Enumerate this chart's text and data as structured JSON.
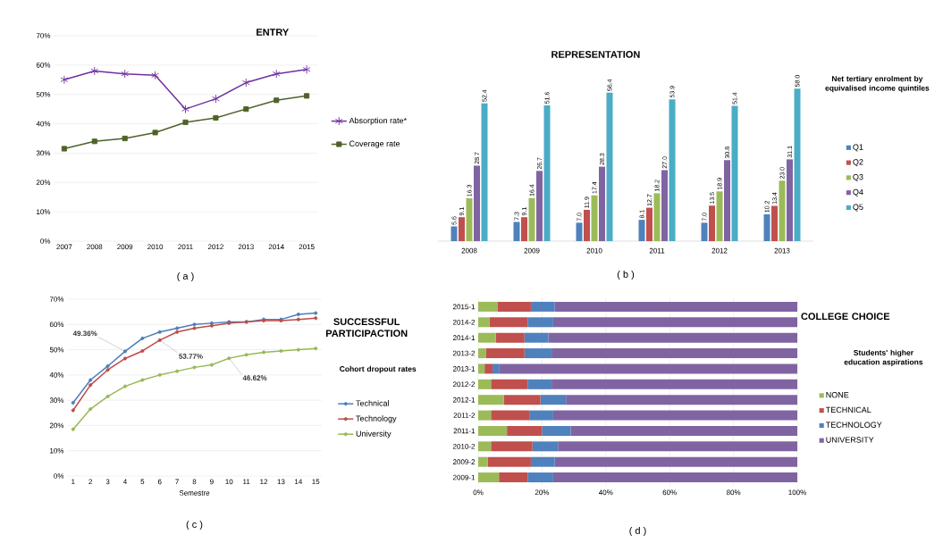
{
  "chart_data": [
    {
      "type": "line",
      "title": "ENTRY",
      "categories": [
        "2007",
        "2008",
        "2009",
        "2010",
        "2011",
        "2012",
        "2013",
        "2014",
        "2015"
      ],
      "series": [
        {
          "name": "Absorption rate*",
          "color": "#7030a0",
          "marker": "cross",
          "values": [
            55,
            58,
            57,
            56.5,
            45,
            48.5,
            54,
            57,
            58.5
          ]
        },
        {
          "name": "Coverage rate",
          "color": "#4f6228",
          "marker": "square",
          "values": [
            31.5,
            34,
            35,
            37,
            40.5,
            42,
            45,
            48,
            49.5
          ]
        }
      ],
      "ylim": [
        0,
        70
      ],
      "yticks": [
        {
          "value": 0,
          "label": "0%"
        },
        {
          "value": 10,
          "label": "10%"
        },
        {
          "value": 20,
          "label": "20%"
        },
        {
          "value": 30,
          "label": "30%"
        },
        {
          "value": 40,
          "label": "40%"
        },
        {
          "value": 50,
          "label": "50%"
        },
        {
          "value": 60,
          "label": "60%"
        },
        {
          "value": 70,
          "label": "70%"
        }
      ],
      "grid": "y",
      "legend": "right",
      "annotations": [
        "( a )"
      ]
    },
    {
      "type": "bar",
      "title": "REPRESENTATION",
      "legend_title": "Net tertiary enrolment by equivalised income quintiles",
      "categories": [
        "2008",
        "2009",
        "2010",
        "2011",
        "2012",
        "2013"
      ],
      "series": [
        {
          "name": "Q1",
          "color": "#4f81bd",
          "values": [
            5.6,
            7.3,
            7.0,
            8.1,
            7.0,
            10.2
          ],
          "value_labels": [
            "5.6",
            "7.3",
            "7.0",
            "8.1",
            "7.0",
            "10.2"
          ]
        },
        {
          "name": "Q2",
          "color": "#c0504d",
          "values": [
            9.1,
            9.1,
            11.9,
            12.7,
            13.5,
            13.4
          ],
          "value_labels": [
            "9.1",
            "9.1",
            "11.9",
            "12.7",
            "13.5",
            "13.4"
          ]
        },
        {
          "name": "Q3",
          "color": "#9bbb59",
          "values": [
            16.3,
            16.4,
            17.4,
            18.2,
            18.9,
            23.0
          ],
          "value_labels": [
            "16.3",
            "16.4",
            "17.4",
            "18.2",
            "18.9",
            "23.0"
          ]
        },
        {
          "name": "Q4",
          "color": "#8064a2",
          "values": [
            28.7,
            26.7,
            28.3,
            27.0,
            30.8,
            31.1
          ],
          "value_labels": [
            "28.7",
            "26.7",
            "28.3",
            "27.0",
            "30.8",
            "31.1"
          ]
        },
        {
          "name": "Q5",
          "color": "#4bacc6",
          "values": [
            52.4,
            51.6,
            56.4,
            53.9,
            51.4,
            58.0
          ],
          "value_labels": [
            "52.4",
            "51.6",
            "56.4",
            "53.9",
            "51.4",
            "58.0"
          ]
        }
      ],
      "legend": "right",
      "annotations": [
        "( b )"
      ]
    },
    {
      "type": "line",
      "title": "SUCCESSFUL PARTICIPACTION",
      "legend_title": "Cohort dropout rates",
      "xlabel": "Semestre",
      "categories": [
        "1",
        "2",
        "3",
        "4",
        "5",
        "6",
        "7",
        "8",
        "9",
        "10",
        "11",
        "12",
        "13",
        "14",
        "15"
      ],
      "series": [
        {
          "name": "Technical",
          "color": "#4a7ebb",
          "values": [
            29,
            38,
            43.5,
            49.36,
            54.5,
            57,
            58.5,
            60,
            60.5,
            61,
            61,
            62,
            62,
            64,
            64.5
          ]
        },
        {
          "name": "Technology",
          "color": "#be4b48",
          "values": [
            26,
            36,
            42,
            46.5,
            49.5,
            53.77,
            57,
            58.5,
            59.5,
            60.5,
            61,
            61.5,
            61.5,
            62,
            62.5
          ]
        },
        {
          "name": "University",
          "color": "#98b954",
          "values": [
            18.5,
            26.5,
            31.5,
            35.5,
            38,
            40,
            41.5,
            43,
            44,
            46.62,
            48,
            49,
            49.5,
            50,
            50.5
          ]
        }
      ],
      "ylim": [
        0,
        70
      ],
      "yticks": [
        {
          "value": 0,
          "label": "0%"
        },
        {
          "value": 10,
          "label": "10%"
        },
        {
          "value": 20,
          "label": "20%"
        },
        {
          "value": 30,
          "label": "30%"
        },
        {
          "value": 40,
          "label": "40%"
        },
        {
          "value": 50,
          "label": "50%"
        },
        {
          "value": 60,
          "label": "60%"
        },
        {
          "value": 70,
          "label": "70%"
        }
      ],
      "grid": "y",
      "legend": "right",
      "marker": "circle",
      "annotations": [
        {
          "text": "49.36%",
          "x": "4",
          "y": 49.36
        },
        {
          "text": "53.77%",
          "x": "6",
          "y": 53.77
        },
        {
          "text": "46.62%",
          "x": "10",
          "y": 46.62
        },
        "( c )"
      ]
    },
    {
      "type": "bar",
      "orientation": "horizontal",
      "stacked": true,
      "title": "COLLEGE CHOICE",
      "legend_title": "Students' higher education aspirations",
      "categories": [
        "2015-1",
        "2014-2",
        "2014-1",
        "2013-2",
        "2013-1",
        "2012-2",
        "2012-1",
        "2011-2",
        "2011-1",
        "2010-2",
        "2009-2",
        "2009-1"
      ],
      "series": [
        {
          "name": "NONE",
          "color": "#9bbb59",
          "values": [
            6,
            3.5,
            5.5,
            2.5,
            2,
            4,
            8,
            4,
            9,
            4,
            3,
            6.5
          ]
        },
        {
          "name": "TECHNICAL",
          "color": "#c0504d",
          "values": [
            10.5,
            12,
            9,
            12,
            2.5,
            11.5,
            11.5,
            12,
            11,
            13,
            13.5,
            9
          ]
        },
        {
          "name": "TECHNOLOGY",
          "color": "#4f81bd",
          "values": [
            7.5,
            8,
            7.5,
            8.5,
            2,
            7.5,
            8,
            7.5,
            9,
            8,
            7.5,
            8
          ]
        },
        {
          "name": "UNIVERSITY",
          "color": "#8064a2",
          "values": [
            76,
            76.5,
            78,
            77,
            93.5,
            77,
            72.5,
            76.5,
            71,
            75,
            76,
            76.5
          ]
        }
      ],
      "xlim": [
        0,
        100
      ],
      "xticks": [
        {
          "value": 0,
          "label": "0%"
        },
        {
          "value": 20,
          "label": "20%"
        },
        {
          "value": 40,
          "label": "40%"
        },
        {
          "value": 60,
          "label": "60%"
        },
        {
          "value": 80,
          "label": "80%"
        },
        {
          "value": 100,
          "label": "100%"
        }
      ],
      "grid": "x",
      "legend": "right",
      "annotations": [
        "( d )"
      ]
    }
  ]
}
